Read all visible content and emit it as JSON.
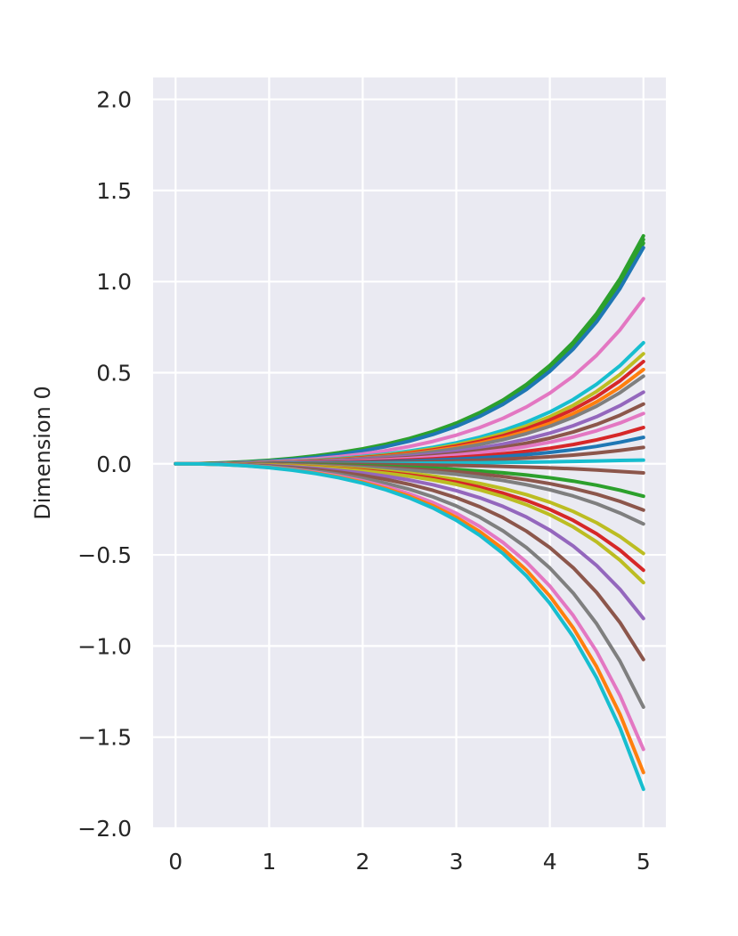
{
  "chart_data": {
    "type": "line",
    "title": "",
    "xlabel": "",
    "ylabel": "Dimension 0",
    "xlim": [
      -0.24,
      5.24
    ],
    "ylim": [
      -2.0,
      2.12
    ],
    "xticks": [
      0,
      1,
      2,
      3,
      4,
      5
    ],
    "xtick_labels": [
      "0",
      "1",
      "2",
      "3",
      "4",
      "5"
    ],
    "yticks": [
      -2.0,
      -1.5,
      -1.0,
      -0.5,
      0.0,
      0.5,
      1.0,
      1.5,
      2.0
    ],
    "ytick_labels": [
      "−2.0",
      "−1.5",
      "−1.0",
      "−0.5",
      "0.0",
      "0.5",
      "1.0",
      "1.5",
      "2.0"
    ],
    "grid": true,
    "style": {
      "plot_background": "#eaeaf2",
      "grid_color": "#ffffff",
      "text_color": "#262626"
    },
    "x": [
      0,
      0.25,
      0.5,
      0.75,
      1,
      1.25,
      1.5,
      1.75,
      2,
      2.25,
      2.5,
      2.75,
      3,
      3.25,
      3.5,
      3.75,
      4,
      4.25,
      4.5,
      4.75,
      5
    ],
    "series": [
      {
        "color": "#2ca02c",
        "values": [
          0,
          0.0005,
          0.0034,
          0.0084,
          0.0155,
          0.0251,
          0.0377,
          0.0536,
          0.0734,
          0.098,
          0.1283,
          0.1654,
          0.2108,
          0.2664,
          0.3343,
          0.4174,
          0.5191,
          0.6436,
          0.796,
          0.9825,
          1.2108
        ]
      },
      {
        "color": "#2ca02c",
        "values": [
          0,
          0.0008,
          0.0042,
          0.0097,
          0.0174,
          0.0277,
          0.0408,
          0.0573,
          0.0777,
          0.1028,
          0.1336,
          0.1712,
          0.2172,
          0.2735,
          0.3423,
          0.4265,
          0.5296,
          0.6558,
          0.8102,
          0.9993,
          1.2308
        ]
      },
      {
        "color": "#2ca02c",
        "values": [
          0,
          0.0012,
          0.005,
          0.0111,
          0.0193,
          0.0302,
          0.0439,
          0.0611,
          0.0821,
          0.1077,
          0.139,
          0.1771,
          0.2236,
          0.2806,
          0.3502,
          0.4356,
          0.54,
          0.6679,
          0.8244,
          1.016,
          1.2508
        ]
      },
      {
        "color": "#1f77b4",
        "values": [
          0,
          0.0004,
          0.003,
          0.0076,
          0.0144,
          0.0237,
          0.0359,
          0.0515,
          0.0709,
          0.0949,
          0.1245,
          0.1609,
          0.2055,
          0.2601,
          0.3267,
          0.4082,
          0.5078,
          0.6298,
          0.7792,
          0.9621,
          1.186
        ]
      },
      {
        "color": "#e377c2",
        "values": [
          0,
          0.0003,
          0.0022,
          0.0057,
          0.0109,
          0.018,
          0.0273,
          0.0393,
          0.0542,
          0.0726,
          0.0952,
          0.123,
          0.1571,
          0.1988,
          0.2497,
          0.3119,
          0.388,
          0.4812,
          0.5954,
          0.7352,
          0.906
        ]
      },
      {
        "color": "#17becf",
        "values": [
          0,
          0.0002,
          0.0015,
          0.0041,
          0.0079,
          0.0131,
          0.0199,
          0.0287,
          0.0396,
          0.0531,
          0.0697,
          0.0901,
          0.1151,
          0.1457,
          0.183,
          0.2286,
          0.2844,
          0.3527,
          0.4364,
          0.5388,
          0.664
        ]
      },
      {
        "color": "#bcbd22",
        "values": [
          0,
          0.0002,
          0.0013,
          0.0037,
          0.0072,
          0.0119,
          0.0181,
          0.0261,
          0.036,
          0.0483,
          0.0634,
          0.082,
          0.1047,
          0.1325,
          0.1665,
          0.208,
          0.2587,
          0.3209,
          0.397,
          0.4902,
          0.604
        ]
      },
      {
        "color": "#d62728",
        "values": [
          0,
          0.0002,
          0.0012,
          0.0034,
          0.0066,
          0.0111,
          0.0168,
          0.0242,
          0.0335,
          0.0449,
          0.0589,
          0.0762,
          0.0973,
          0.1231,
          0.1546,
          0.1932,
          0.2403,
          0.2981,
          0.3688,
          0.4553,
          0.561
        ]
      },
      {
        "color": "#ff7f0e",
        "values": [
          0,
          0.0002,
          0.0011,
          0.0031,
          0.0061,
          0.0102,
          0.0155,
          0.0223,
          0.0309,
          0.0414,
          0.0543,
          0.0702,
          0.0897,
          0.1135,
          0.1425,
          0.178,
          0.2215,
          0.2748,
          0.34,
          0.4197,
          0.517
        ]
      },
      {
        "color": "#7f7f7f",
        "values": [
          0,
          0.0001,
          0.001,
          0.0029,
          0.0057,
          0.0095,
          0.0144,
          0.0208,
          0.0287,
          0.0385,
          0.0505,
          0.0653,
          0.0834,
          0.1055,
          0.1326,
          0.1656,
          0.206,
          0.2555,
          0.3162,
          0.3903,
          0.481
        ]
      },
      {
        "color": "#9467bd",
        "values": [
          0,
          0.0001,
          0.0008,
          0.0024,
          0.0047,
          0.0078,
          0.0118,
          0.017,
          0.0235,
          0.0315,
          0.0413,
          0.0534,
          0.0682,
          0.0863,
          0.1084,
          0.1354,
          0.1684,
          0.2089,
          0.2585,
          0.3191,
          0.393
        ]
      },
      {
        "color": "#8c564b",
        "values": [
          0,
          0.0001,
          0.0007,
          0.002,
          0.0039,
          0.0065,
          0.0099,
          0.0142,
          0.0196,
          0.0263,
          0.0345,
          0.0446,
          0.057,
          0.0721,
          0.0906,
          0.1131,
          0.1407,
          0.1745,
          0.216,
          0.2666,
          0.328
        ]
      },
      {
        "color": "#e377c2",
        "values": [
          0,
          0.0001,
          0.0006,
          0.0017,
          0.0033,
          0.0055,
          0.0083,
          0.0119,
          0.0165,
          0.0221,
          0.029,
          0.0375,
          0.0479,
          0.0606,
          0.0761,
          0.095,
          0.1182,
          0.1466,
          0.1814,
          0.2239,
          0.276
        ]
      },
      {
        "color": "#d62728",
        "values": [
          0,
          0.0,
          0.0004,
          0.0012,
          0.0024,
          0.0039,
          0.006,
          0.0086,
          0.0119,
          0.016,
          0.0209,
          0.0271,
          0.0346,
          0.0438,
          0.055,
          0.0687,
          0.0854,
          0.1059,
          0.1311,
          0.1618,
          0.199
        ]
      },
      {
        "color": "#1f77b4",
        "values": [
          0,
          0.0,
          0.0003,
          0.0009,
          0.0017,
          0.0029,
          0.0044,
          0.0063,
          0.0087,
          0.0117,
          0.0153,
          0.0198,
          0.0253,
          0.032,
          0.0402,
          0.0502,
          0.0624,
          0.0774,
          0.0958,
          0.1182,
          0.145
        ]
      },
      {
        "color": "#8c564b",
        "values": [
          0,
          0.0,
          0.0002,
          0.0005,
          0.0011,
          0.0018,
          0.0027,
          0.0039,
          0.0054,
          0.0072,
          0.0095,
          0.0123,
          0.0157,
          0.0199,
          0.0249,
          0.0311,
          0.0387,
          0.048,
          0.0594,
          0.0733,
          0.09
        ]
      },
      {
        "color": "#17becf",
        "values": [
          0,
          0.0,
          0.0001,
          0.0002,
          0.0004,
          0.0006,
          0.0009,
          0.0013,
          0.0018,
          0.0023,
          0.003,
          0.0038,
          0.0048,
          0.0059,
          0.0073,
          0.009,
          0.0108,
          0.013,
          0.0155,
          0.0182,
          0.02
        ]
      },
      {
        "color": "#8c564b",
        "values": [
          0,
          0.0,
          -0.0001,
          -0.0003,
          -0.0006,
          -0.0011,
          -0.0016,
          -0.0023,
          -0.0031,
          -0.0042,
          -0.0055,
          -0.0071,
          -0.009,
          -0.0114,
          -0.0143,
          -0.0179,
          -0.0222,
          -0.0276,
          -0.0341,
          -0.0421,
          -0.05
        ]
      },
      {
        "color": "#2ca02c",
        "values": [
          0,
          -0.0001,
          -0.0004,
          -0.0011,
          -0.0021,
          -0.0035,
          -0.0054,
          -0.0077,
          -0.0107,
          -0.0143,
          -0.0188,
          -0.0243,
          -0.031,
          -0.0393,
          -0.0493,
          -0.0616,
          -0.0766,
          -0.095,
          -0.1175,
          -0.145,
          -0.178
        ]
      },
      {
        "color": "#8c564b",
        "values": [
          0,
          -0.0001,
          -0.0006,
          -0.0016,
          -0.003,
          -0.005,
          -0.0076,
          -0.011,
          -0.0152,
          -0.0203,
          -0.0267,
          -0.0345,
          -0.0441,
          -0.0558,
          -0.0701,
          -0.0875,
          -0.1089,
          -0.1351,
          -0.1671,
          -0.2063,
          -0.254
        ]
      },
      {
        "color": "#7f7f7f",
        "values": [
          0,
          -0.0001,
          -0.0008,
          -0.002,
          -0.004,
          -0.0066,
          -0.01,
          -0.0144,
          -0.0199,
          -0.0267,
          -0.035,
          -0.0453,
          -0.0578,
          -0.0731,
          -0.0918,
          -0.1147,
          -0.1427,
          -0.177,
          -0.219,
          -0.2703,
          -0.33
        ]
      },
      {
        "color": "#bcbd22",
        "values": [
          0,
          -0.0002,
          -0.0011,
          -0.003,
          -0.0059,
          -0.0098,
          -0.0148,
          -0.0213,
          -0.0294,
          -0.0394,
          -0.0517,
          -0.0668,
          -0.0853,
          -0.108,
          -0.1357,
          -0.1695,
          -0.2109,
          -0.2616,
          -0.3236,
          -0.3995,
          -0.492
        ]
      },
      {
        "color": "#d62728",
        "values": [
          0,
          -0.0002,
          -0.0013,
          -0.0036,
          -0.0069,
          -0.0116,
          -0.0176,
          -0.0253,
          -0.0349,
          -0.0468,
          -0.0614,
          -0.0793,
          -0.1013,
          -0.1282,
          -0.1611,
          -0.2012,
          -0.2504,
          -0.3106,
          -0.3842,
          -0.4743,
          -0.584
        ]
      },
      {
        "color": "#bcbd22",
        "values": [
          0,
          -0.0002,
          -0.0015,
          -0.004,
          -0.0078,
          -0.0129,
          -0.0196,
          -0.0282,
          -0.0389,
          -0.0522,
          -0.0685,
          -0.0885,
          -0.113,
          -0.143,
          -0.1797,
          -0.2245,
          -0.2793,
          -0.3464,
          -0.4286,
          -0.5291,
          -0.652
        ]
      },
      {
        "color": "#9467bd",
        "values": [
          0,
          -0.0003,
          -0.0019,
          -0.0052,
          -0.0101,
          -0.0168,
          -0.0256,
          -0.0367,
          -0.0507,
          -0.068,
          -0.0892,
          -0.1152,
          -0.1472,
          -0.1863,
          -0.2341,
          -0.2924,
          -0.3638,
          -0.4513,
          -0.5583,
          -0.6892,
          -0.849
        ]
      },
      {
        "color": "#8c564b",
        "values": [
          0,
          -0.0004,
          -0.0025,
          -0.0067,
          -0.0128,
          -0.0213,
          -0.0323,
          -0.0464,
          -0.0641,
          -0.086,
          -0.1128,
          -0.1458,
          -0.1862,
          -0.2357,
          -0.2961,
          -0.3698,
          -0.4601,
          -0.5707,
          -0.7061,
          -0.8716,
          -1.074
        ]
      },
      {
        "color": "#7f7f7f",
        "values": [
          0,
          -0.0004,
          -0.003,
          -0.0082,
          -0.0159,
          -0.0265,
          -0.0402,
          -0.0577,
          -0.0797,
          -0.1069,
          -0.1402,
          -0.1812,
          -0.2315,
          -0.293,
          -0.3681,
          -0.4598,
          -0.572,
          -0.7095,
          -0.8778,
          -1.0836,
          -1.335
        ]
      },
      {
        "color": "#e377c2",
        "values": [
          0,
          -0.0005,
          -0.0036,
          -0.0097,
          -0.0187,
          -0.0311,
          -0.0472,
          -0.0678,
          -0.0935,
          -0.1255,
          -0.1646,
          -0.2127,
          -0.2717,
          -0.3439,
          -0.4321,
          -0.5397,
          -0.6714,
          -0.8328,
          -1.0303,
          -1.2719,
          -1.567
        ]
      },
      {
        "color": "#ff7f0e",
        "values": [
          0,
          -0.0006,
          -0.0039,
          -0.0105,
          -0.0202,
          -0.0336,
          -0.051,
          -0.0733,
          -0.1011,
          -0.1357,
          -0.178,
          -0.23,
          -0.2938,
          -0.3719,
          -0.4672,
          -0.5836,
          -0.726,
          -0.9005,
          -1.114,
          -1.3753,
          -1.694
        ]
      },
      {
        "color": "#17becf",
        "values": [
          0,
          -0.0006,
          -0.0041,
          -0.0111,
          -0.0213,
          -0.0354,
          -0.0538,
          -0.0773,
          -0.1066,
          -0.1431,
          -0.1877,
          -0.2425,
          -0.3098,
          -0.3922,
          -0.4927,
          -0.6154,
          -0.7656,
          -0.9496,
          -1.1748,
          -1.4502,
          -1.786
        ]
      }
    ]
  }
}
